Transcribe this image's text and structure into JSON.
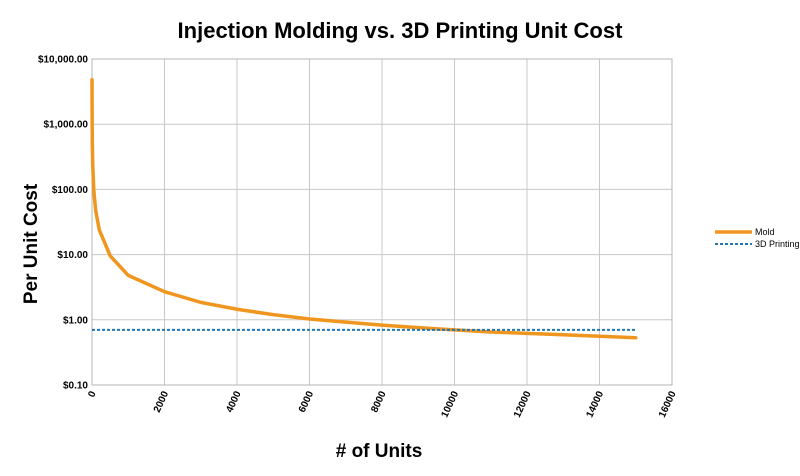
{
  "chart_data": {
    "type": "line",
    "title": "Injection Molding vs. 3D Printing Unit Cost",
    "xlabel": "# of Units",
    "ylabel": "Per Unit Cost",
    "xlim": [
      0,
      16000
    ],
    "ylim": [
      0.1,
      10000
    ],
    "yscale": "log",
    "grid": true,
    "legend_position": "right",
    "x_ticks": [
      "0",
      "2000",
      "4000",
      "6000",
      "8000",
      "10000",
      "12000",
      "14000",
      "16000"
    ],
    "y_ticks": [
      "$0.10",
      "$1.00",
      "$10.00",
      "$100.00",
      "$1,000.00",
      "$10,000.00"
    ],
    "series": [
      {
        "name": "Mold",
        "color": "#f0961e",
        "style": "solid",
        "x": [
          1,
          2,
          5,
          10,
          20,
          50,
          100,
          200,
          500,
          1000,
          2000,
          3000,
          4000,
          5000,
          6000,
          7000,
          8000,
          9000,
          10000,
          11000,
          12000,
          13000,
          14000,
          15000
        ],
        "y": [
          4800,
          2400,
          960,
          480,
          240,
          96,
          48,
          24,
          9.6,
          4.8,
          2.7,
          1.85,
          1.45,
          1.2,
          1.03,
          0.92,
          0.83,
          0.76,
          0.7,
          0.65,
          0.62,
          0.59,
          0.56,
          0.53
        ]
      },
      {
        "name": "3D Printing",
        "color": "#1f77b4",
        "style": "dotted",
        "x": [
          0,
          15000
        ],
        "y": [
          0.7,
          0.7
        ]
      }
    ]
  }
}
